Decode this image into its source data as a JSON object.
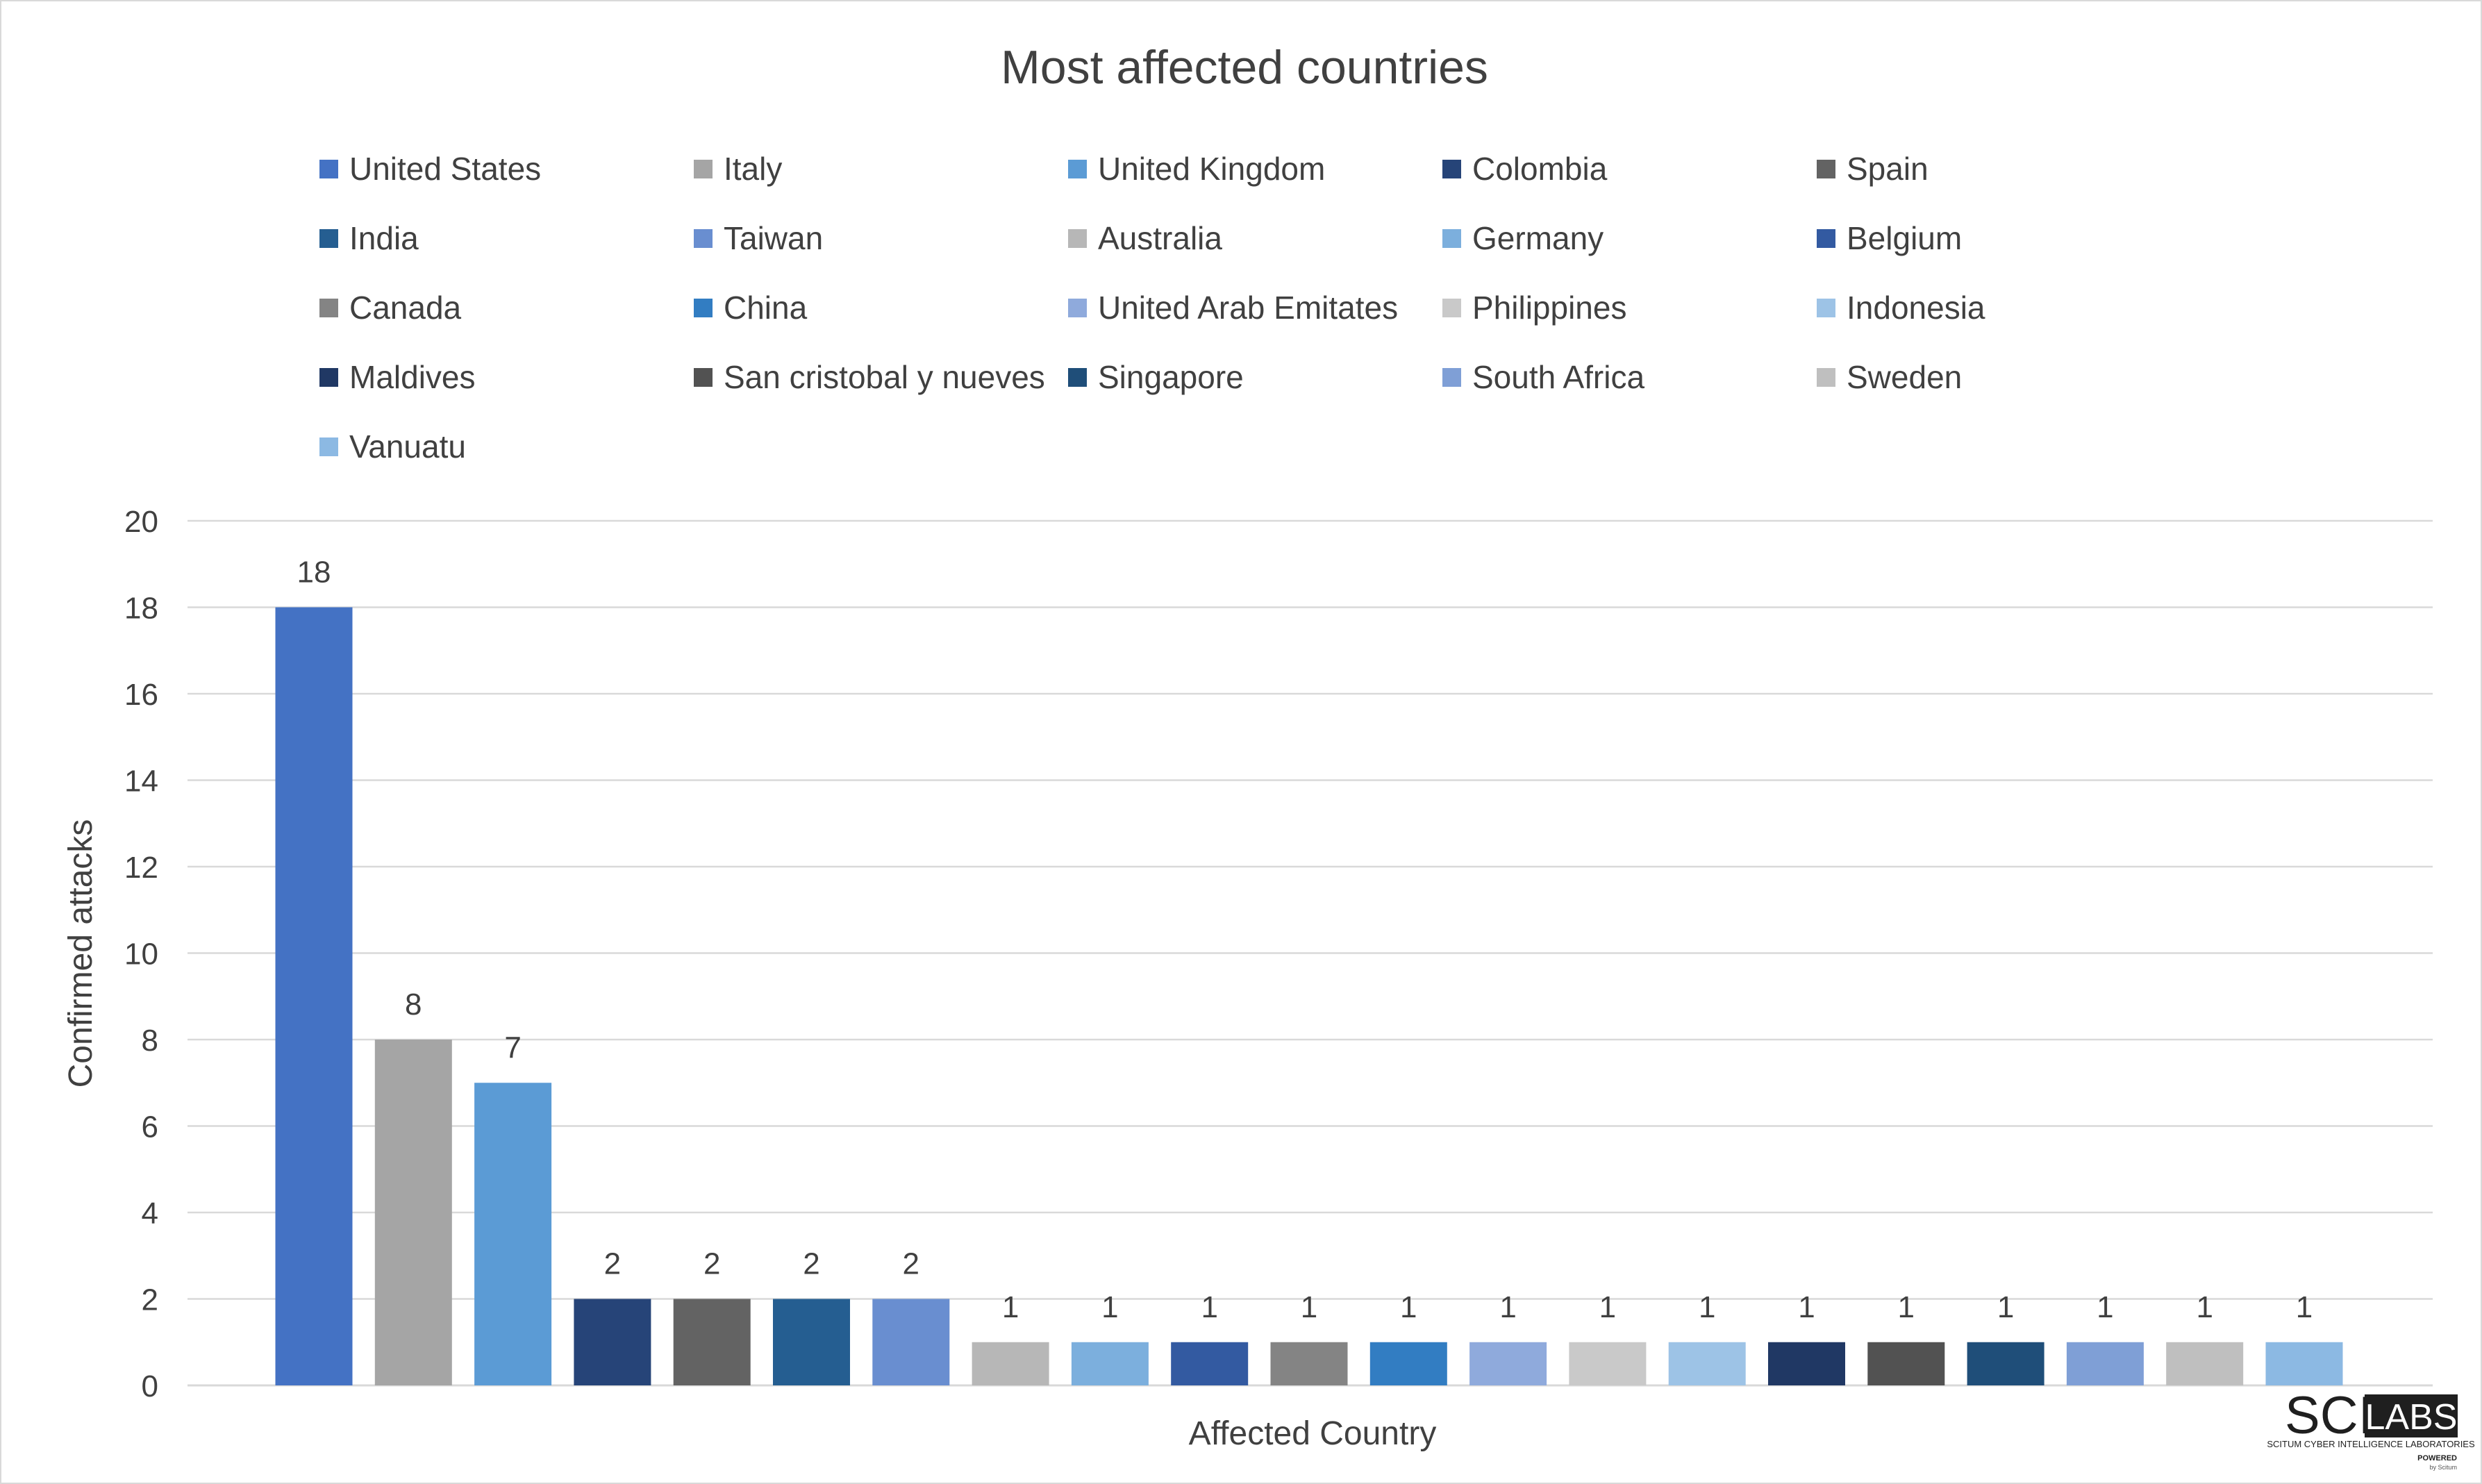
{
  "chart_data": {
    "type": "bar",
    "title": "Most affected countries",
    "xlabel": "Affected Country",
    "ylabel": "Confirmed attacks",
    "ylim": [
      0,
      20
    ],
    "yticks": [
      "0",
      "2",
      "4",
      "6",
      "8",
      "10",
      "12",
      "14",
      "16",
      "18",
      "20"
    ],
    "legend_position": "top",
    "grid": true,
    "categories": [
      "United States",
      "Italy",
      "United Kingdom",
      "Colombia",
      "Spain",
      "India",
      "Taiwan",
      "Australia",
      "Germany",
      "Belgium",
      "Canada",
      "China",
      "United Arab Emitates",
      "Philippines",
      "Indonesia",
      "Maldives",
      "San cristobal y nueves",
      "Singapore",
      "South Africa",
      "Sweden",
      "Vanuatu"
    ],
    "values": [
      18,
      8,
      7,
      2,
      2,
      2,
      2,
      1,
      1,
      1,
      1,
      1,
      1,
      1,
      1,
      1,
      1,
      1,
      1,
      1,
      1
    ],
    "colors": [
      "#4472c4",
      "#a5a5a5",
      "#5b9bd5",
      "#264478",
      "#636363",
      "#255e91",
      "#698ed0",
      "#b7b7b7",
      "#7cafdd",
      "#335aa1",
      "#848484",
      "#327dc2",
      "#8faadc",
      "#c9c9c9",
      "#9dc3e6",
      "#203864",
      "#525252",
      "#1f4e79",
      "#7f9fd6",
      "#bfbfbf",
      "#8cb9e3"
    ]
  },
  "logo": {
    "text_left": "SCI",
    "text_right": "LABS",
    "subtitle": "SCITUM CYBER INTELLIGENCE LABORATORIES",
    "powered": "POWERED",
    "by": "by Scitum"
  }
}
